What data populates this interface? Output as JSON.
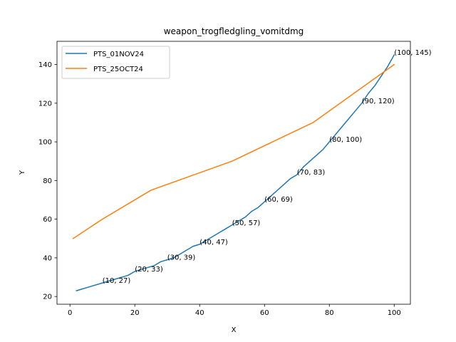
{
  "chart_data": {
    "type": "line",
    "title": "weapon_trogfledgling_vomitdmg",
    "xlabel": "X",
    "ylabel": "Y",
    "xlim": [
      -4,
      105
    ],
    "ylim": [
      16,
      152
    ],
    "xticks": [
      0,
      20,
      40,
      60,
      80,
      100
    ],
    "yticks": [
      20,
      40,
      60,
      80,
      100,
      120,
      140
    ],
    "legend_position": "top-left",
    "grid": false,
    "series": [
      {
        "name": "PTS_01NOV24",
        "color": "#1f77b4",
        "x": [
          2,
          6,
          10,
          14,
          18,
          20,
          22,
          24,
          26,
          28,
          30,
          32,
          34,
          36,
          38,
          40,
          42,
          44,
          46,
          48,
          50,
          52,
          54,
          56,
          58,
          60,
          62,
          64,
          66,
          68,
          70,
          72,
          74,
          76,
          78,
          80,
          82,
          84,
          86,
          88,
          90,
          92,
          94,
          96,
          98,
          100
        ],
        "y": [
          23,
          25,
          27,
          29,
          31,
          33,
          34,
          35,
          36,
          38,
          39,
          40,
          42,
          44,
          46,
          47,
          49,
          51,
          53,
          55,
          57,
          59,
          61,
          64,
          66,
          69,
          72,
          75,
          78,
          81,
          83,
          87,
          90,
          93,
          96,
          100,
          104,
          108,
          112,
          116,
          120,
          125,
          129,
          134,
          139,
          145
        ]
      },
      {
        "name": "PTS_25OCT24",
        "color": "#ff7f0e",
        "x": [
          1,
          10,
          25,
          50,
          75,
          100
        ],
        "y": [
          50,
          60,
          75,
          90,
          110,
          140
        ]
      }
    ],
    "annotations": [
      {
        "text": "(10, 27)",
        "x": 10,
        "y": 27
      },
      {
        "text": "(20, 33)",
        "x": 20,
        "y": 33
      },
      {
        "text": "(30, 39)",
        "x": 30,
        "y": 39
      },
      {
        "text": "(40, 47)",
        "x": 40,
        "y": 47
      },
      {
        "text": "(50, 57)",
        "x": 50,
        "y": 57
      },
      {
        "text": "(60, 69)",
        "x": 60,
        "y": 69
      },
      {
        "text": "(70, 83)",
        "x": 70,
        "y": 83
      },
      {
        "text": "(80, 100)",
        "x": 80,
        "y": 100
      },
      {
        "text": "(90, 120)",
        "x": 90,
        "y": 120
      },
      {
        "text": "(100, 145)",
        "x": 100,
        "y": 145
      }
    ]
  }
}
